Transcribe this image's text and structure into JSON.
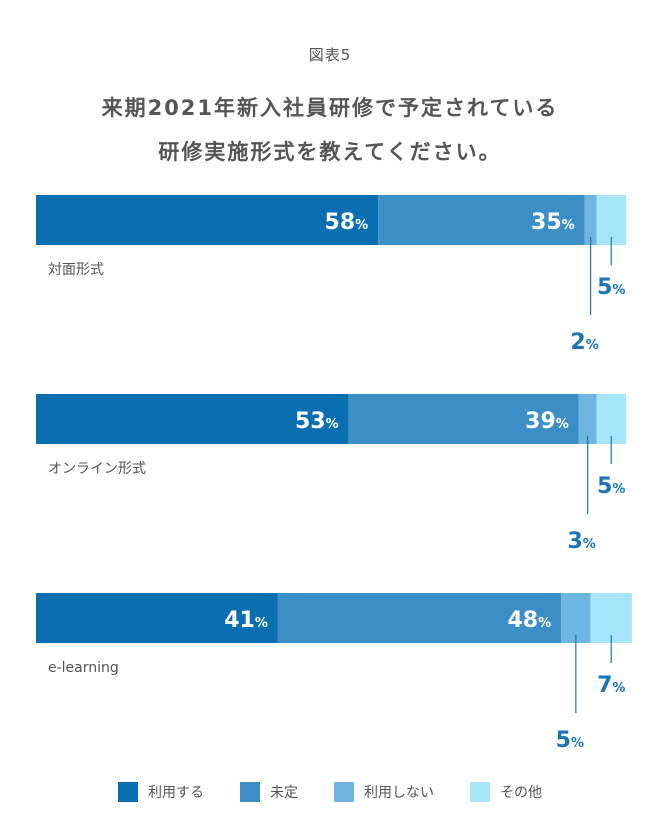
{
  "figure_label": "図表5",
  "title_line1": "来期2021年新入社員研修で予定されている",
  "title_line2": "研修実施形式を教えてください。",
  "chart_data": {
    "type": "bar",
    "orientation": "horizontal-stacked-100",
    "unit": "%",
    "categories": [
      "対面形式",
      "オンライン形式",
      "e-learning"
    ],
    "series": [
      {
        "name": "利用する",
        "color": "#0a6fb1",
        "values": [
          58,
          53,
          41
        ]
      },
      {
        "name": "未定",
        "color": "#3b8fc6",
        "values": [
          35,
          39,
          48
        ]
      },
      {
        "name": "利用しない",
        "color": "#6eb5df",
        "values": [
          2,
          3,
          5
        ]
      },
      {
        "name": "その他",
        "color": "#a6e6fb",
        "values": [
          5,
          5,
          7
        ]
      }
    ],
    "legend_position": "bottom"
  }
}
